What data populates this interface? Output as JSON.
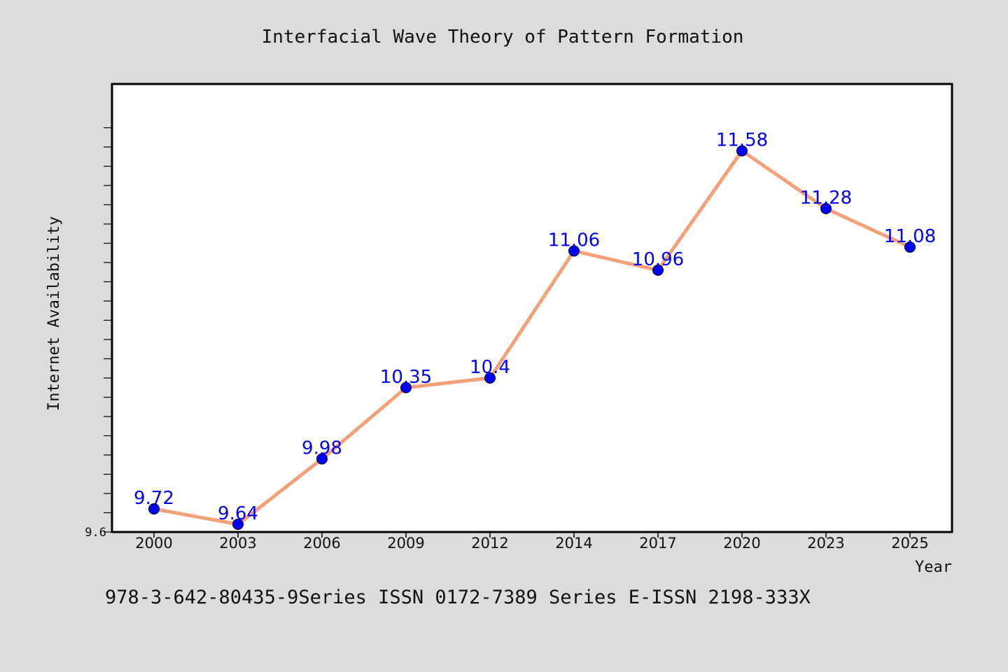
{
  "chart_data": {
    "type": "line",
    "title": "Interfacial Wave Theory of Pattern Formation",
    "xlabel": "Year",
    "ylabel": "Internet Availability",
    "categories": [
      "2000",
      "2003",
      "2006",
      "2009",
      "2012",
      "2014",
      "2017",
      "2020",
      "2023",
      "2025"
    ],
    "values": [
      9.72,
      9.64,
      9.98,
      10.35,
      10.4,
      11.06,
      10.96,
      11.58,
      11.28,
      11.08
    ],
    "data_labels": [
      "9.72",
      "9.64",
      "9.98",
      "10.35",
      "10.4",
      "11.06",
      "10.96",
      "11.58",
      "11.28",
      "11.08"
    ],
    "ylim": [
      9.6,
      11.8
    ],
    "yticks_labeled": [
      "9.6"
    ],
    "grid": false,
    "legend": "none",
    "line_color": "#f4a07a",
    "marker_color": "#0000ff",
    "label_color": "#0000ff"
  },
  "footer_text": "978-3-642-80435-9Series ISSN 0172-7389 Series E-ISSN 2198-333X"
}
